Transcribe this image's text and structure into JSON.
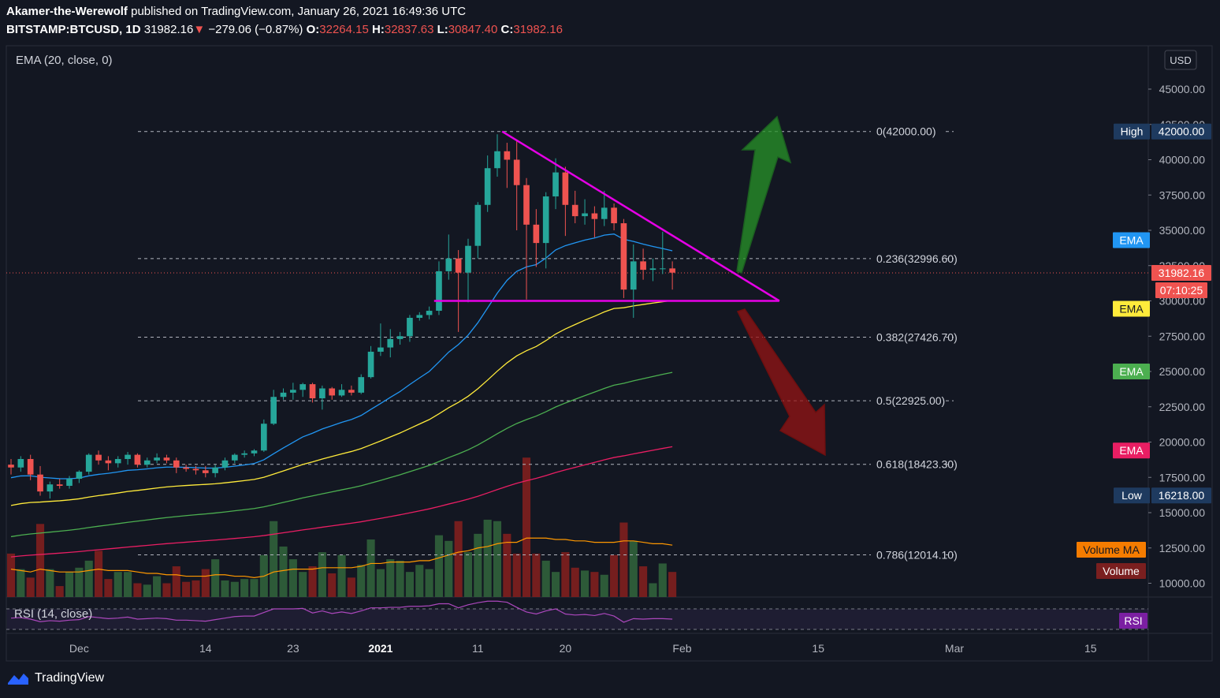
{
  "header": {
    "author": "Akamer-the-Werewolf",
    "published_text": "published on TradingView.com, January 26, 2021 16:49:36 UTC",
    "symbol": "BITSTAMP:BTCUSD, 1D",
    "last": "31982.16",
    "change": "−279.06 (−0.87%)",
    "o_label": "O:",
    "o_value": "32264.15",
    "h_label": "H:",
    "h_value": "32837.63",
    "l_label": "L:",
    "l_value": "30847.40",
    "c_label": "C:",
    "c_value": "31982.16"
  },
  "indicator_label": "EMA (20, close, 0)",
  "rsi_label": "RSI (14, close)",
  "currency_button": "USD",
  "footer": {
    "brand": "TradingView"
  },
  "colors": {
    "background": "#131722",
    "up": "#26a69a",
    "down": "#ef5350",
    "ema20": "#2196f3",
    "ema50": "#ffeb3b",
    "ema100": "#4caf50",
    "ema200": "#e91e63",
    "volume_ma": "#ff9800",
    "triangle": "#e600e6",
    "rsi": "#9c27b0"
  },
  "chart_data": {
    "type": "candlestick",
    "title": "",
    "y_axis": {
      "ticks": [
        "45000.00",
        "42500.00",
        "40000.00",
        "37500.00",
        "35000.00",
        "32500.00",
        "30000.00",
        "27500.00",
        "25000.00",
        "22500.00",
        "20000.00",
        "17500.00",
        "15000.00",
        "12500.00",
        "10000.00"
      ],
      "range": [
        8500,
        47500
      ]
    },
    "x_axis": {
      "ticks": [
        {
          "label": "Dec",
          "index": 7
        },
        {
          "label": "14",
          "index": 20
        },
        {
          "label": "23",
          "index": 29
        },
        {
          "label": "2021",
          "index": 38
        },
        {
          "label": "11",
          "index": 48
        },
        {
          "label": "20",
          "index": 57
        },
        {
          "label": "Feb",
          "index": 69
        },
        {
          "label": "15",
          "index": 83
        },
        {
          "label": "Mar",
          "index": 97
        },
        {
          "label": "15",
          "index": 111
        }
      ]
    },
    "candles": [
      [
        18400,
        18800,
        17700,
        18200
      ],
      [
        18200,
        19000,
        17900,
        18800
      ],
      [
        18800,
        19100,
        17300,
        17700
      ],
      [
        17700,
        18300,
        16200,
        16500
      ],
      [
        16500,
        17200,
        16000,
        17000
      ],
      [
        17000,
        17400,
        16700,
        16900
      ],
      [
        16900,
        17600,
        16700,
        17400
      ],
      [
        17400,
        18000,
        17100,
        17900
      ],
      [
        17900,
        19200,
        17700,
        19100
      ],
      [
        19100,
        19400,
        18400,
        18700
      ],
      [
        18700,
        19000,
        18000,
        18500
      ],
      [
        18500,
        19000,
        18200,
        18800
      ],
      [
        18800,
        19300,
        18400,
        19100
      ],
      [
        19100,
        19200,
        18200,
        18400
      ],
      [
        18400,
        18900,
        18200,
        18700
      ],
      [
        18700,
        19200,
        18500,
        18900
      ],
      [
        18900,
        19100,
        18500,
        18700
      ],
      [
        18700,
        18900,
        17800,
        18200
      ],
      [
        18200,
        18400,
        17900,
        18100
      ],
      [
        18100,
        18300,
        17700,
        18000
      ],
      [
        18000,
        18300,
        17500,
        17800
      ],
      [
        17800,
        18400,
        17500,
        18200
      ],
      [
        18200,
        18900,
        18000,
        18700
      ],
      [
        18700,
        19200,
        18500,
        19100
      ],
      [
        19100,
        19400,
        18900,
        19200
      ],
      [
        19200,
        19500,
        19000,
        19400
      ],
      [
        19400,
        21600,
        19300,
        21300
      ],
      [
        21300,
        23700,
        21200,
        23200
      ],
      [
        23200,
        23800,
        23000,
        23500
      ],
      [
        23500,
        24200,
        23000,
        23700
      ],
      [
        23700,
        24200,
        23200,
        24100
      ],
      [
        24100,
        24200,
        22800,
        23100
      ],
      [
        23100,
        24000,
        22300,
        23800
      ],
      [
        23800,
        23900,
        23000,
        23300
      ],
      [
        23300,
        24100,
        23200,
        23700
      ],
      [
        23700,
        24000,
        23300,
        23500
      ],
      [
        23500,
        24800,
        23400,
        24600
      ],
      [
        24600,
        26800,
        24500,
        26400
      ],
      [
        26400,
        28400,
        26100,
        26700
      ],
      [
        26700,
        28000,
        26000,
        27300
      ],
      [
        27300,
        27800,
        26900,
        27500
      ],
      [
        27500,
        29000,
        27100,
        28800
      ],
      [
        28800,
        29200,
        28600,
        29000
      ],
      [
        29000,
        29600,
        28700,
        29300
      ],
      [
        29300,
        32800,
        29000,
        32100
      ],
      [
        32100,
        34700,
        31500,
        33000
      ],
      [
        33000,
        33600,
        27800,
        32000
      ],
      [
        32000,
        34400,
        29900,
        33900
      ],
      [
        33900,
        37000,
        33000,
        36800
      ],
      [
        36800,
        40300,
        36300,
        39400
      ],
      [
        39400,
        41800,
        38800,
        40600
      ],
      [
        40600,
        41200,
        38000,
        40000
      ],
      [
        40000,
        41400,
        35000,
        38200
      ],
      [
        38200,
        38700,
        30100,
        35400
      ],
      [
        35400,
        36500,
        32400,
        34100
      ],
      [
        34100,
        37700,
        32300,
        37400
      ],
      [
        37400,
        40100,
        36500,
        39100
      ],
      [
        39100,
        39500,
        34600,
        36800
      ],
      [
        36800,
        37800,
        35500,
        36000
      ],
      [
        36000,
        37200,
        35400,
        36200
      ],
      [
        36200,
        36700,
        34500,
        35800
      ],
      [
        35800,
        37800,
        35300,
        36600
      ],
      [
        36600,
        36900,
        35000,
        35500
      ],
      [
        35500,
        35800,
        30200,
        30800
      ],
      [
        30800,
        34000,
        28800,
        32800
      ],
      [
        32800,
        33700,
        31500,
        32200
      ],
      [
        32200,
        33000,
        31400,
        32300
      ],
      [
        32300,
        34900,
        31900,
        32300
      ],
      [
        32300,
        32800,
        30800,
        32000
      ]
    ],
    "volume": [
      12.1,
      11.0,
      10.4,
      14.2,
      11.0,
      9.8,
      10.8,
      11.1,
      11.6,
      12.3,
      10.3,
      10.8,
      10.8,
      10.0,
      9.9,
      10.5,
      10.0,
      11.2,
      10.1,
      10.2,
      11.0,
      11.7,
      10.2,
      10.1,
      10.3,
      10.3,
      12.0,
      14.4,
      12.6,
      11.7,
      10.8,
      11.2,
      12.2,
      10.7,
      12.0,
      10.4,
      11.3,
      13.1,
      11.0,
      11.7,
      11.6,
      10.8,
      11.3,
      11.0,
      13.4,
      13.0,
      14.4,
      12.2,
      13.5,
      14.5,
      14.4,
      13.5,
      12.1,
      18.9,
      12.1,
      11.6,
      10.8,
      12.2,
      11.1,
      10.9,
      10.8,
      10.6,
      12.0,
      14.3,
      13.0,
      11.2,
      10.0,
      11.4,
      10.8
    ],
    "volume_ma": [
      11.0,
      10.9,
      10.8,
      11.0,
      10.9,
      10.8,
      10.8,
      10.8,
      10.9,
      11.0,
      10.9,
      10.9,
      10.9,
      10.8,
      10.7,
      10.7,
      10.6,
      10.6,
      10.5,
      10.5,
      10.5,
      10.6,
      10.6,
      10.5,
      10.5,
      10.4,
      10.5,
      10.8,
      10.9,
      11.0,
      11.0,
      11.0,
      11.1,
      11.1,
      11.1,
      11.1,
      11.2,
      11.4,
      11.4,
      11.5,
      11.5,
      11.5,
      11.6,
      11.6,
      11.8,
      12.0,
      12.2,
      12.3,
      12.5,
      12.6,
      12.8,
      12.9,
      12.9,
      13.2,
      13.2,
      13.2,
      13.1,
      13.1,
      13.0,
      13.0,
      12.9,
      12.9,
      12.9,
      13.0,
      13.0,
      12.9,
      12.8,
      12.8,
      12.7
    ],
    "ema_lengths": [
      20,
      50,
      100,
      200
    ],
    "ema_labels": [
      "EMA",
      "EMA",
      "EMA",
      "EMA"
    ],
    "ema_seed": [
      17400,
      15400,
      13200,
      11800
    ],
    "fib_levels": [
      {
        "label": "0(42000.00)",
        "price": 42000
      },
      {
        "label": "0.236(32996.60)",
        "price": 32996.6
      },
      {
        "label": "0.382(27426.70)",
        "price": 27426.7
      },
      {
        "label": "0.5(22925.00)",
        "price": 22925
      },
      {
        "label": "0.618(18423.30)",
        "price": 18423.3
      },
      {
        "label": "0.786(12014.10)",
        "price": 12014.1
      }
    ],
    "price_tags": {
      "high_label": "High",
      "high_value": "42000.00",
      "high_price": 42000,
      "low_label": "Low",
      "low_value": "16218.00",
      "low_price": 16218,
      "last_value": "31982.16",
      "last_price": 31982.16,
      "countdown": "07:10:25",
      "volume_ma_label": "Volume MA",
      "volume_label": "Volume",
      "rsi_tag": "RSI"
    },
    "triangle": {
      "apex_index": 50.5,
      "apex_price": 42000,
      "base_left_index": 43.5,
      "base_price": 30000,
      "tip_index": 79,
      "tip_price": 30000
    },
    "rsi": [
      52,
      53,
      50,
      45,
      47,
      46,
      48,
      49,
      55,
      53,
      51,
      52,
      54,
      50,
      51,
      52,
      51,
      48,
      48,
      47,
      46,
      49,
      52,
      55,
      56,
      56,
      63,
      70,
      70,
      70,
      71,
      62,
      66,
      61,
      64,
      61,
      66,
      72,
      72,
      73,
      73,
      75,
      75,
      76,
      80,
      80,
      72,
      78,
      82,
      85,
      85,
      83,
      73,
      64,
      60,
      66,
      70,
      60,
      58,
      59,
      57,
      61,
      56,
      44,
      51,
      50,
      51,
      51,
      50
    ]
  }
}
